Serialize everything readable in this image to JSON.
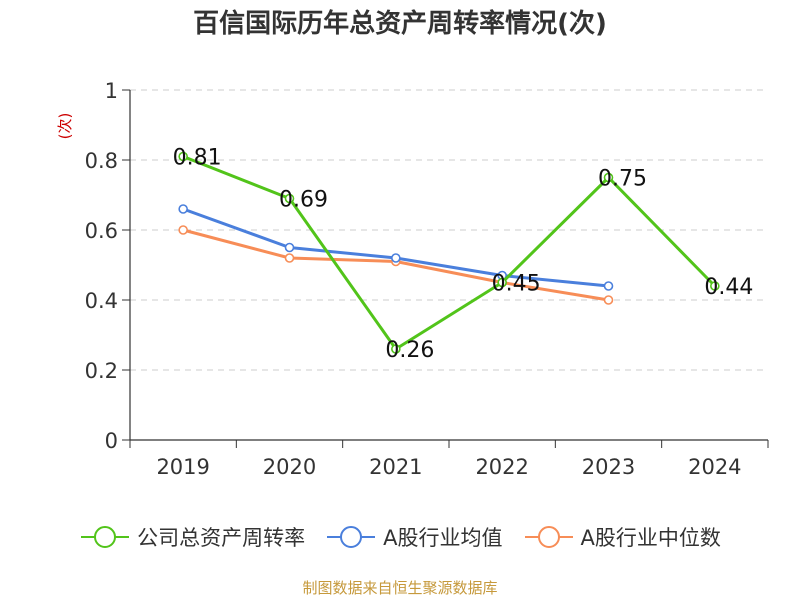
{
  "chart_data": {
    "type": "line",
    "title": "百信国际历年总资产周转率情况(次)",
    "ylabel": "(次)",
    "xlabel": "",
    "categories": [
      "2019",
      "2020",
      "2021",
      "2022",
      "2023",
      "2024"
    ],
    "ylim": [
      0,
      1
    ],
    "yticks": [
      "0",
      "0.2",
      "0.4",
      "0.6",
      "0.8",
      "1"
    ],
    "grid": true,
    "legend_position": "bottom",
    "series": [
      {
        "name": "公司总资产周转率",
        "color": "#52c41a",
        "values": [
          0.81,
          0.69,
          0.26,
          0.45,
          0.75,
          0.44
        ],
        "labels": [
          "0.81",
          "0.69",
          "0.26",
          "0.45",
          "0.75",
          "0.44"
        ]
      },
      {
        "name": "A股行业均值",
        "color": "#4a7fdc",
        "values": [
          0.66,
          0.55,
          0.52,
          0.47,
          0.44,
          null
        ]
      },
      {
        "name": "A股行业中位数",
        "color": "#f78d57",
        "values": [
          0.6,
          0.52,
          0.51,
          0.45,
          0.4,
          null
        ]
      }
    ]
  },
  "source": {
    "text": "制图数据来自恒生聚源数据库",
    "color": "#c6993b"
  },
  "ylabel_color": "#cc0000"
}
